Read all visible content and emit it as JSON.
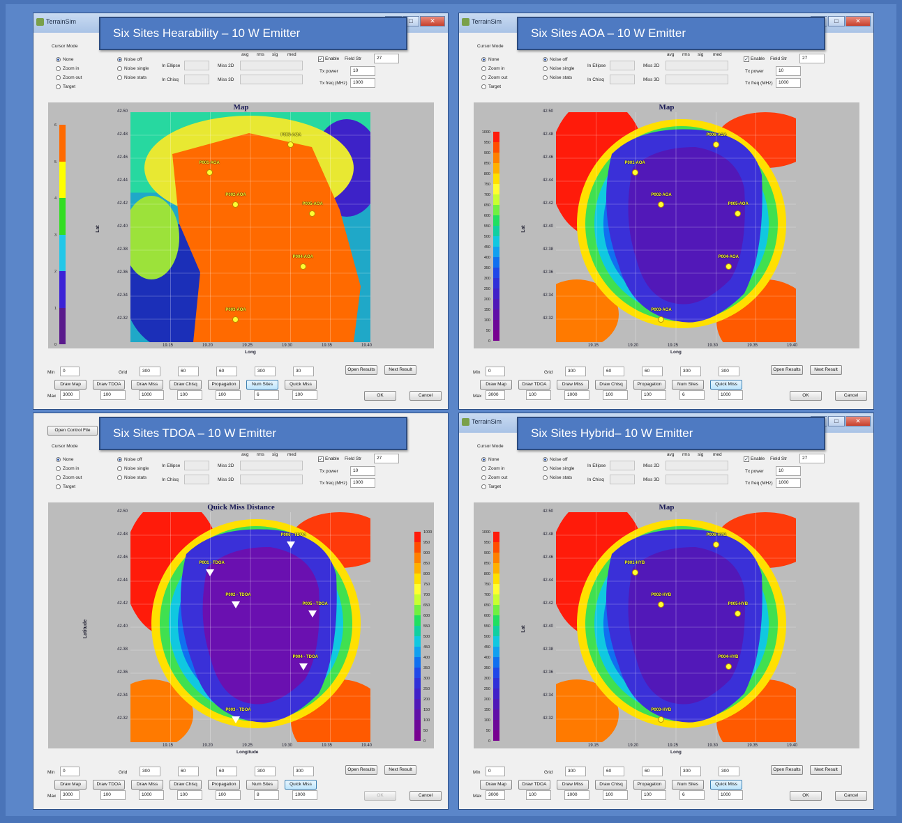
{
  "common": {
    "app_title": "TerrainSim",
    "cursor_mode_label": "Cursor Mode",
    "cursor_options": [
      "None",
      "Zoom in",
      "Zoom out",
      "Target"
    ],
    "noise_options": [
      "Noise off",
      "Noise single",
      "Noise stats"
    ],
    "stat_headers": [
      "avg",
      "rms",
      "sig",
      "med"
    ],
    "in_ellipse": "In Ellipse",
    "in_chisq": "In Chisq",
    "miss_2d": "Miss 2D",
    "miss_3d": "Miss 3D",
    "enable": "Enable",
    "field_str": "Field Str",
    "field_str_value": "27",
    "tx_power": "Tx power",
    "tx_power_value": "10",
    "tx_freq": "Tx freq (MHz)",
    "tx_freq_value": "1000",
    "min_label": "Min",
    "min_value": "0",
    "max_label": "Max",
    "max_value": "3000",
    "grid_label": "Grid",
    "buttons": [
      "Draw Map",
      "Draw TDOA",
      "Draw Miss",
      "Draw Chisq",
      "Propagation",
      "Num Sites",
      "Quick Miss"
    ],
    "open_results": "Open Results",
    "next_result": "Next Result",
    "ok": "OK",
    "cancel": "Cancel",
    "lat_ticks": [
      "42.50",
      "42.48",
      "42.46",
      "42.44",
      "42.42",
      "42.40",
      "42.38",
      "42.36",
      "42.34",
      "42.32"
    ],
    "long_ticks": [
      "19.15",
      "19.20",
      "19.25",
      "19.30",
      "19.35",
      "19.40"
    ],
    "miss_scale": [
      "1000",
      "950",
      "900",
      "850",
      "800",
      "750",
      "700",
      "650",
      "600",
      "550",
      "500",
      "450",
      "400",
      "350",
      "300",
      "250",
      "200",
      "150",
      "100",
      "50",
      "0"
    ],
    "hear_scale": [
      "6",
      "5",
      "4",
      "3",
      "2",
      "1",
      "0"
    ],
    "open_control_file": "Open Control File"
  },
  "panels": [
    {
      "overlay_title": "Six Sites Hearability – 10 W Emitter",
      "map_title": "Map",
      "xlabel": "Long",
      "ylabel": "Lat",
      "grid_values": [
        "300",
        "60",
        "60",
        "300",
        "30"
      ],
      "bottom_values": [
        "100",
        "1000",
        "100",
        "100",
        "6",
        "100"
      ],
      "sites": [
        "P001-AOA",
        "P002-AOA",
        "P003-AOA",
        "P004-AOA",
        "P005-AOA",
        "P006-AOA"
      ]
    },
    {
      "overlay_title": "Six  Sites AOA – 10 W Emitter",
      "map_title": "Map",
      "xlabel": "Long",
      "ylabel": "Lat",
      "grid_values": [
        "300",
        "60",
        "60",
        "300",
        "300"
      ],
      "bottom_values": [
        "100",
        "1000",
        "100",
        "100",
        "6",
        "1000"
      ],
      "sites": [
        "P001-AOA",
        "P002-AOA",
        "P003-AOA",
        "P004-AOA",
        "P005-AOA",
        "P006-AOA"
      ]
    },
    {
      "overlay_title": "Six Sites TDOA – 10 W Emitter",
      "map_title": "Quick Miss Distance",
      "xlabel": "Longitude",
      "ylabel": "Latitude",
      "grid_values": [
        "300",
        "60",
        "60",
        "300",
        "300"
      ],
      "bottom_values": [
        "100",
        "1000",
        "100",
        "100",
        "8",
        "1000"
      ],
      "sites": [
        "P001 - TDOA",
        "P002 - TDOA",
        "P003 - TDOA",
        "P004 - TDOA",
        "P005 - TDOA",
        "P006 - TDOA"
      ]
    },
    {
      "overlay_title": "Six  Sites Hybrid– 10 W Emitter",
      "map_title": "Map",
      "xlabel": "Long",
      "ylabel": "Lat",
      "grid_values": [
        "300",
        "60",
        "60",
        "300",
        "300"
      ],
      "bottom_values": [
        "100",
        "1000",
        "100",
        "100",
        "6",
        "1000"
      ],
      "sites": [
        "P001-HYB",
        "P002-HYB",
        "P003-HYB",
        "P004-HYB",
        "P005-HYB",
        "P006-HYB"
      ]
    }
  ]
}
